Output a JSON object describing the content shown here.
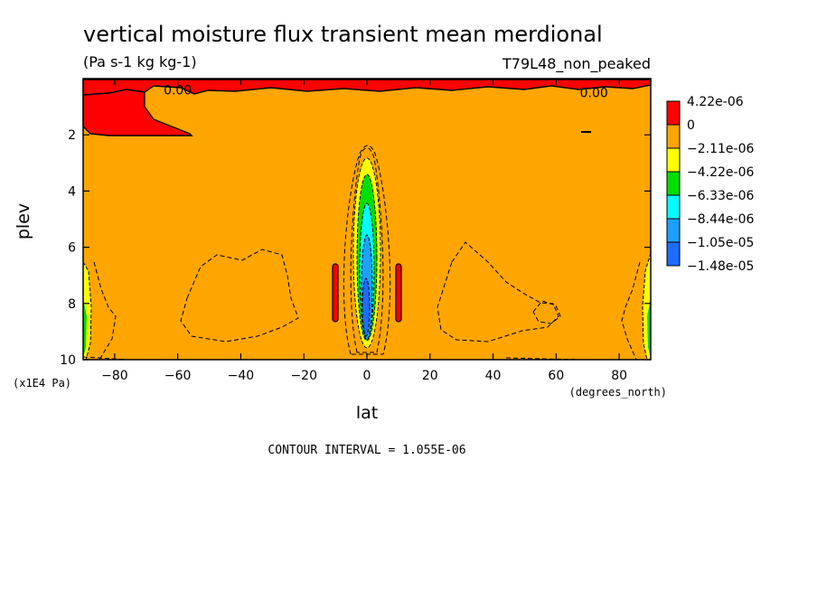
{
  "chart_data": {
    "type": "heatmap",
    "title": "vertical moisture flux transient mean merdional",
    "units": "(Pa s-1 kg kg-1)",
    "run_label": "T79L48_non_peaked",
    "xlabel": "lat",
    "xunits": "(degrees_north)",
    "ylabel": "plev",
    "yunits": "(x1E4 Pa)",
    "xlim": [
      -90,
      90
    ],
    "ylim": [
      10,
      0
    ],
    "x_ticks": [
      -80,
      -60,
      -40,
      -20,
      0,
      20,
      40,
      60,
      80
    ],
    "y_ticks": [
      2,
      4,
      6,
      8,
      10
    ],
    "contour_labels": [
      {
        "text": "0.00",
        "x": -60,
        "y": 0.4
      },
      {
        "text": "0.00",
        "x": 72,
        "y": 0.5
      }
    ],
    "contour_interval": "CONTOUR INTERVAL = 1.055E-06",
    "background_color": "#ffa500",
    "legend": {
      "placement": "right",
      "entries": [
        {
          "label": "4.22e-06",
          "color": "#ff0000"
        },
        {
          "label": "0",
          "color": "#ffa500"
        },
        {
          "label": "−2.11e-06",
          "color": "#ffff00"
        },
        {
          "label": "−4.22e-06",
          "color": "#00dd00"
        },
        {
          "label": "−6.33e-06",
          "color": "#00ffff"
        },
        {
          "label": "−8.44e-06",
          "color": "#1ea0ff"
        },
        {
          "label": "−1.05e-05",
          "color": "#1e6cff"
        },
        {
          "label": "−1.48e-05",
          "color": ""
        }
      ]
    }
  }
}
